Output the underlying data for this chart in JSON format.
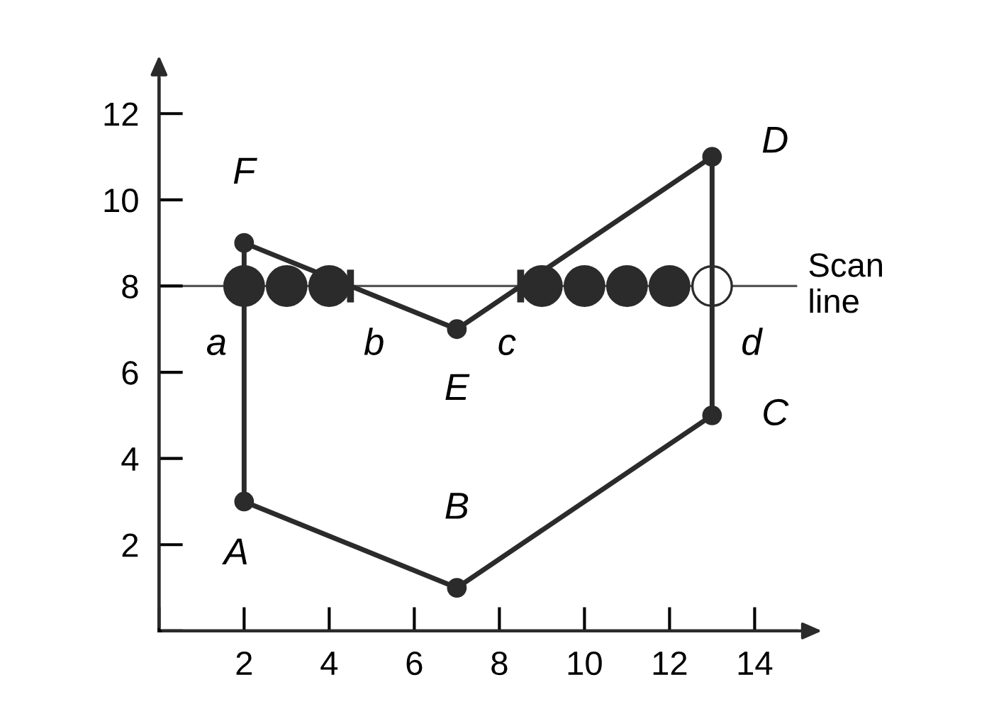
{
  "chart_data": {
    "type": "line",
    "xlim": [
      0,
      15
    ],
    "ylim": [
      0,
      12.8
    ],
    "xticks": [
      {
        "value": 0,
        "label": null
      },
      2,
      4,
      6,
      8,
      10,
      12,
      14
    ],
    "yticks": [
      {
        "value": 0,
        "label": null
      },
      2,
      4,
      6,
      8,
      10,
      12
    ],
    "grid": false,
    "legend": false,
    "series": [
      {
        "type": "scatter",
        "color": "#2b2b2b",
        "x": [
          2,
          3,
          4,
          9,
          10,
          11,
          12
        ],
        "values": [
          8,
          8,
          8,
          8,
          8,
          8,
          8
        ],
        "marker": "circle"
      },
      {
        "type": "scatter",
        "color": "#ffffff",
        "x": [
          13
        ],
        "values": [
          8
        ],
        "marker": "circle"
      },
      {
        "color": "#2b2b2b",
        "x": [
          2,
          7,
          13
        ],
        "values": [
          3,
          1,
          5
        ],
        "marker": "circle",
        "line_style": "solid"
      },
      {
        "color": "#2b2b2b",
        "x": [
          2,
          7,
          13
        ],
        "values": [
          9,
          7,
          11
        ],
        "marker": "circle",
        "line_style": "solid"
      },
      {
        "color": "#2b2b2b",
        "x": [
          2,
          2
        ],
        "values": [
          3,
          9
        ],
        "line_style": "solid"
      },
      {
        "color": "#2b2b2b",
        "x": [
          13,
          13
        ],
        "values": [
          5,
          11
        ],
        "line_style": "solid"
      }
    ],
    "ref_lines": [
      {
        "axis": "y",
        "value": 8,
        "label": "Scan\nline",
        "color": "#555555",
        "line_style": "solid"
      }
    ],
    "annotations": [
      {
        "text": "a",
        "x": 2,
        "y": 8
      },
      {
        "text": "b",
        "x": 4.5,
        "y": 8
      },
      {
        "text": "c",
        "x": 8.5,
        "y": 8
      },
      {
        "text": "d",
        "x": 13,
        "y": 8
      },
      {
        "text": "A",
        "x": 2,
        "y": 3
      },
      {
        "text": "B",
        "x": 7,
        "y": 1
      },
      {
        "text": "C",
        "x": 13,
        "y": 5
      },
      {
        "text": "D",
        "x": 13,
        "y": 11
      },
      {
        "text": "E",
        "x": 7,
        "y": 7
      },
      {
        "text": "F",
        "x": 2,
        "y": 9
      }
    ]
  }
}
